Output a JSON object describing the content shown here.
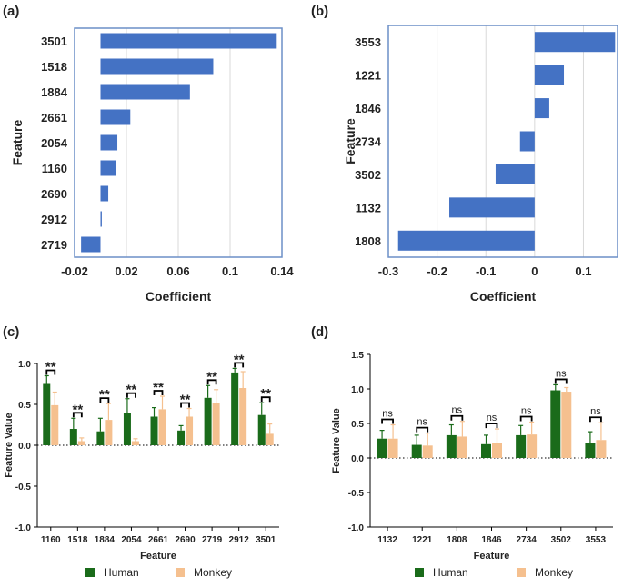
{
  "colors": {
    "bar_blue": "#4472c4",
    "human": "#1a6b1a",
    "monkey": "#f5c08f",
    "frame": "#6c8fc7",
    "grid": "#d9d9d9"
  },
  "chart_data": [
    {
      "panel": "(a)",
      "type": "bar",
      "orientation": "horizontal",
      "categories": [
        "3501",
        "1518",
        "1884",
        "2661",
        "2054",
        "1160",
        "2690",
        "2912",
        "2719"
      ],
      "values": [
        0.136,
        0.087,
        0.069,
        0.023,
        0.013,
        0.012,
        0.006,
        0.001,
        -0.015
      ],
      "xlabel": "Coefficient",
      "ylabel": "Feature",
      "xlim": [
        -0.02,
        0.14
      ],
      "xticks": [
        "-0.02",
        "0.02",
        "0.06",
        "0.1",
        "0.14"
      ],
      "xtick_values": [
        -0.02,
        0.02,
        0.06,
        0.1,
        0.14
      ]
    },
    {
      "panel": "(b)",
      "type": "bar",
      "orientation": "horizontal",
      "categories": [
        "3553",
        "1221",
        "1846",
        "2734",
        "3502",
        "1132",
        "1808"
      ],
      "values": [
        0.165,
        0.06,
        0.03,
        -0.03,
        -0.08,
        -0.175,
        -0.28
      ],
      "xlabel": "Coefficient",
      "ylabel": "Feature",
      "xlim": [
        -0.3,
        0.17
      ],
      "xticks": [
        "-0.3",
        "-0.2",
        "-0.1",
        "0",
        "0.1"
      ],
      "xtick_values": [
        -0.3,
        -0.2,
        -0.1,
        0,
        0.1
      ]
    },
    {
      "panel": "(c)",
      "type": "bar",
      "categories": [
        "1160",
        "1518",
        "1884",
        "2054",
        "2661",
        "2690",
        "2719",
        "2912",
        "3501"
      ],
      "series": [
        {
          "name": "Human",
          "values": [
            0.75,
            0.2,
            0.17,
            0.4,
            0.35,
            0.18,
            0.58,
            0.89,
            0.37
          ],
          "errors": [
            0.1,
            0.13,
            0.16,
            0.17,
            0.11,
            0.06,
            0.15,
            0.05,
            0.15
          ]
        },
        {
          "name": "Monkey",
          "values": [
            0.49,
            0.05,
            0.31,
            0.05,
            0.44,
            0.35,
            0.52,
            0.7,
            0.14
          ],
          "errors": [
            0.16,
            0.04,
            0.2,
            0.03,
            0.16,
            0.1,
            0.16,
            0.2,
            0.12
          ]
        }
      ],
      "significance": [
        "**",
        "**",
        "**",
        "**",
        "**",
        "**",
        "**",
        "**",
        "**"
      ],
      "xlabel": "Feature",
      "ylabel": "Feature Value",
      "ylim": [
        -1.0,
        1.0
      ],
      "yticks": [
        "-1.0",
        "-0.5",
        "0.0",
        "0.5",
        "1.0"
      ],
      "ytick_values": [
        -1.0,
        -0.5,
        0.0,
        0.5,
        1.0
      ]
    },
    {
      "panel": "(d)",
      "type": "bar",
      "categories": [
        "1132",
        "1221",
        "1808",
        "1846",
        "2734",
        "3502",
        "3553"
      ],
      "series": [
        {
          "name": "Human",
          "values": [
            0.28,
            0.19,
            0.33,
            0.2,
            0.33,
            0.98,
            0.22
          ],
          "errors": [
            0.12,
            0.14,
            0.15,
            0.13,
            0.14,
            0.08,
            0.16
          ]
        },
        {
          "name": "Monkey",
          "values": [
            0.28,
            0.18,
            0.31,
            0.22,
            0.34,
            0.96,
            0.26
          ],
          "errors": [
            0.2,
            0.18,
            0.22,
            0.2,
            0.18,
            0.06,
            0.25
          ]
        }
      ],
      "significance": [
        "ns",
        "ns",
        "ns",
        "ns",
        "ns",
        "ns",
        "ns"
      ],
      "xlabel": "Feature",
      "ylabel": "Feature Value",
      "ylim": [
        -1.0,
        1.5
      ],
      "yticks": [
        "-1.0",
        "-0.5",
        "0.0",
        "0.5",
        "1.0",
        "1.5"
      ],
      "ytick_values": [
        -1.0,
        -0.5,
        0.0,
        0.5,
        1.0,
        1.5
      ]
    }
  ]
}
